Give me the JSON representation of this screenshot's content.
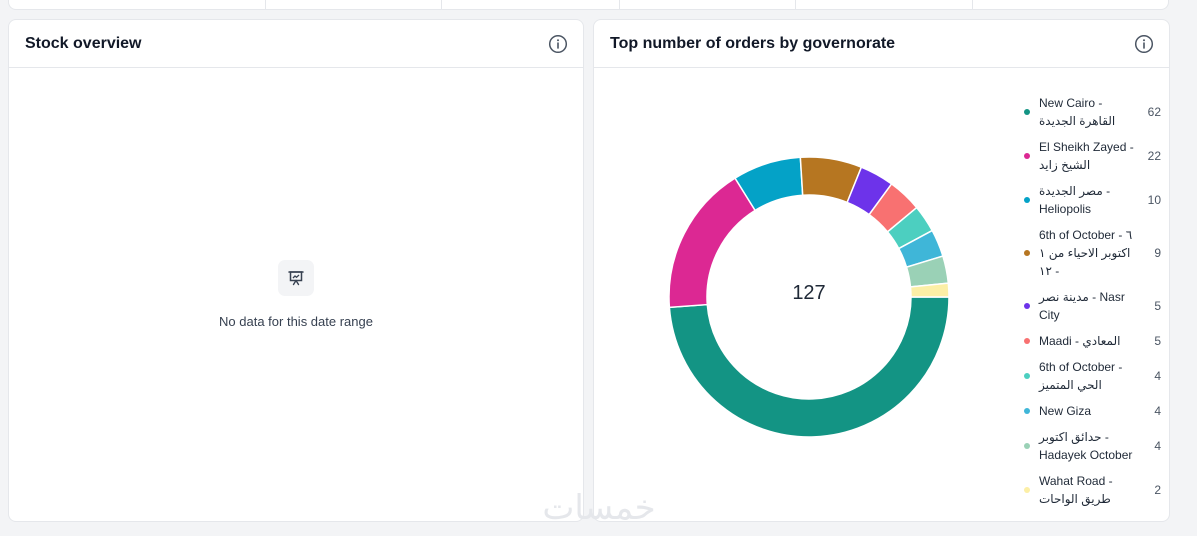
{
  "stock_overview": {
    "title": "Stock overview",
    "empty_text": "No data for this date range",
    "info_icon": "info-circle-icon",
    "empty_icon": "presentation-chart-icon"
  },
  "orders_card": {
    "title": "Top number of orders by governorate",
    "info_icon": "info-circle-icon"
  },
  "chart_data": {
    "type": "pie",
    "variant": "donut",
    "title": "Top number of orders by governorate",
    "total_label": "127",
    "legend_position": "right",
    "slices": [
      {
        "label": "New Cairo - القاهرة الجديدة",
        "value": 62,
        "color": "#139484"
      },
      {
        "label": "El Sheikh Zayed - الشيخ زايد",
        "value": 22,
        "color": "#dc2893"
      },
      {
        "label": "مصر الجديدة - Heliopolis",
        "value": 10,
        "color": "#04a2c7"
      },
      {
        "label": "6th of October - ٦ اكتوبر الاحياء من ١ - ١٢",
        "value": 9,
        "color": "#b67621"
      },
      {
        "label": "مدينة نصر - Nasr City",
        "value": 5,
        "color": "#6d33ea"
      },
      {
        "label": "Maadi - المعادي",
        "value": 5,
        "color": "#f87171"
      },
      {
        "label": "6th of October - الحي المتميز",
        "value": 4,
        "color": "#4ccfc0"
      },
      {
        "label": "New Giza",
        "value": 4,
        "color": "#3fb6d8"
      },
      {
        "label": "حدائق اكتوبر - Hadayek October",
        "value": 4,
        "color": "#9ad1b6"
      },
      {
        "label": "Wahat Road - طريق الواحات",
        "value": 2,
        "color": "#fcefa6"
      }
    ]
  },
  "watermark": "خمسات"
}
